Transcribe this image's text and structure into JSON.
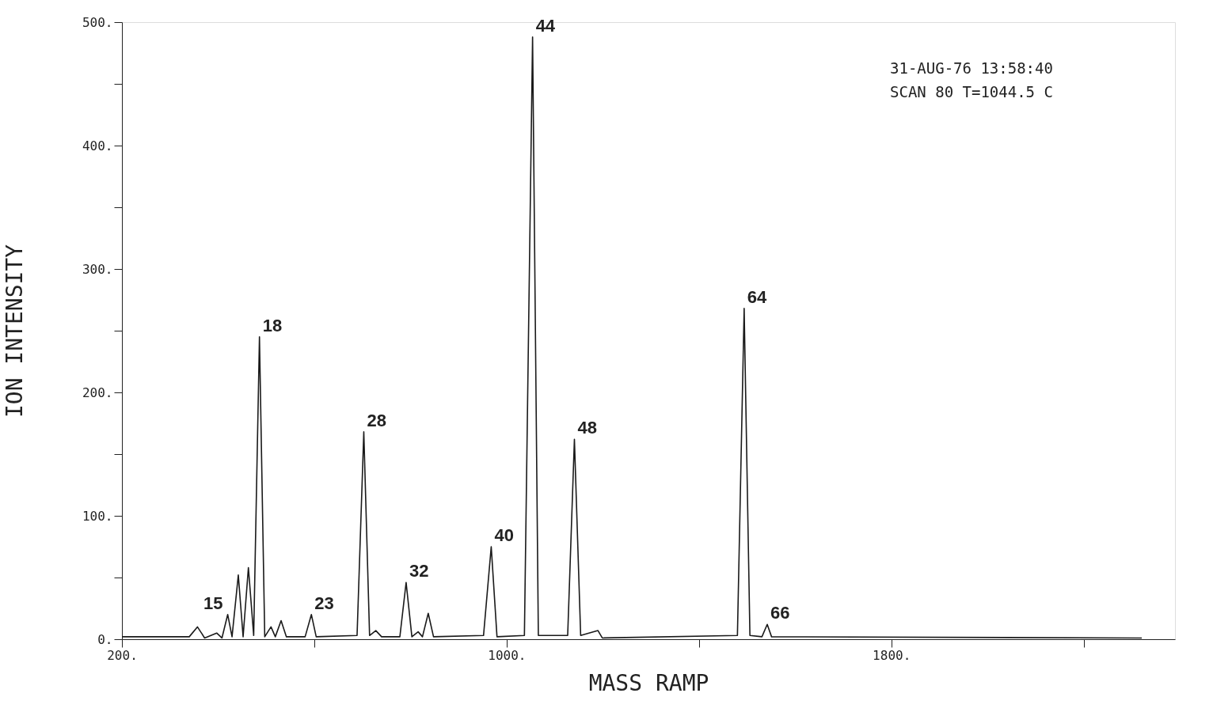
{
  "chart_data": {
    "type": "line",
    "xlabel": "MASS RAMP",
    "ylabel": "ION INTENSITY",
    "color": "#1a1a1a",
    "xlim": [
      200,
      2390
    ],
    "ylim": [
      0,
      500
    ],
    "xticks": [
      {
        "value": 200,
        "label": "200."
      },
      {
        "value": 600,
        "label": null
      },
      {
        "value": 1000,
        "label": "1000."
      },
      {
        "value": 1400,
        "label": null
      },
      {
        "value": 1800,
        "label": "1800."
      },
      {
        "value": 2200,
        "label": null
      }
    ],
    "yticks": [
      {
        "value": 0,
        "label": "0."
      },
      {
        "value": 50,
        "label": null
      },
      {
        "value": 100,
        "label": "100."
      },
      {
        "value": 150,
        "label": null
      },
      {
        "value": 200,
        "label": "200."
      },
      {
        "value": 250,
        "label": null
      },
      {
        "value": 300,
        "label": "300."
      },
      {
        "value": 350,
        "label": null
      },
      {
        "value": 400,
        "label": "400."
      },
      {
        "value": 450,
        "label": null
      },
      {
        "value": 500,
        "label": "500."
      }
    ],
    "grid": false,
    "marker": "none",
    "line_style": "solid",
    "x": [
      200,
      340,
      357,
      372,
      397,
      408,
      420,
      429,
      442,
      452,
      463,
      474,
      486,
      497,
      510,
      519,
      531,
      542,
      581,
      594,
      604,
      689,
      703,
      715,
      728,
      740,
      778,
      791,
      803,
      816,
      825,
      837,
      848,
      952,
      968,
      980,
      1037,
      1054,
      1066,
      1127,
      1141,
      1154,
      1190,
      1199,
      1480,
      1494,
      1506,
      1531,
      1542,
      1551,
      2321
    ],
    "values": [
      2,
      2,
      10,
      1,
      5,
      1,
      20,
      2,
      52,
      2,
      58,
      3,
      245,
      2,
      10,
      2,
      15,
      2,
      2,
      20,
      2,
      3,
      168,
      3,
      7,
      2,
      2,
      46,
      2,
      6,
      2,
      21,
      2,
      3,
      75,
      2,
      3,
      488,
      3,
      3,
      162,
      3,
      7,
      1,
      3,
      268,
      3,
      2,
      12,
      2,
      1
    ],
    "annotations": [
      {
        "text": "15",
        "x": 420,
        "y": 20
      },
      {
        "text": "18",
        "x": 486,
        "y": 245
      },
      {
        "text": "23",
        "x": 594,
        "y": 20
      },
      {
        "text": "28",
        "x": 703,
        "y": 168
      },
      {
        "text": "32",
        "x": 791,
        "y": 46
      },
      {
        "text": "40",
        "x": 968,
        "y": 75
      },
      {
        "text": "44",
        "x": 1054,
        "y": 488
      },
      {
        "text": "48",
        "x": 1141,
        "y": 162
      },
      {
        "text": "64",
        "x": 1494,
        "y": 268
      },
      {
        "text": "66",
        "x": 1542,
        "y": 12
      },
      "31-AUG-76   13:58:40",
      "SCAN   80   T=1044.5 C"
    ]
  }
}
